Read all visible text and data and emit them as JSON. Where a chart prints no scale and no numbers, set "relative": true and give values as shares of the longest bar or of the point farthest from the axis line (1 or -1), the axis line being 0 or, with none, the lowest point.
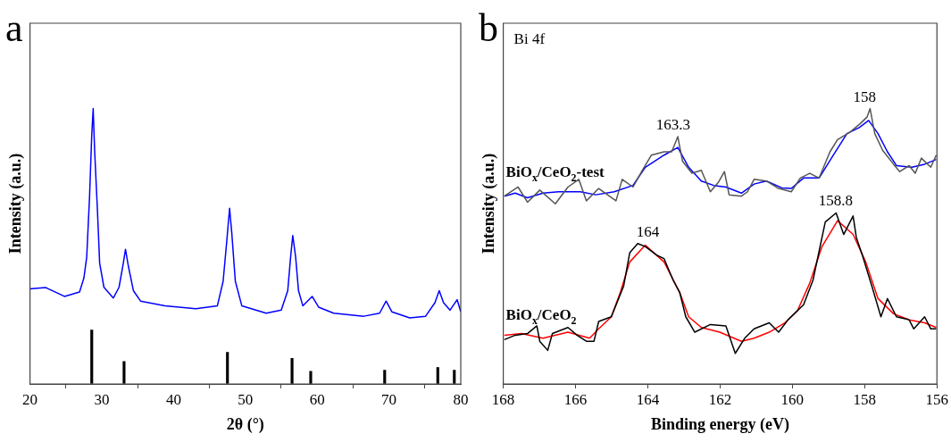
{
  "chart_data": [
    {
      "type": "line",
      "title": "a",
      "xlabel": "2θ (°)",
      "ylabel": "Intensity (a.u.)",
      "relative": true,
      "xlim": [
        20,
        80
      ],
      "xticks": [
        20,
        30,
        40,
        50,
        60,
        70,
        80
      ],
      "legend": false,
      "grid": false,
      "marker": "none",
      "series": [
        {
          "type": "line",
          "color": "#0000ff",
          "x": [
            20,
            22.2,
            24.8,
            26.9,
            27.5,
            27.9,
            28.3,
            28.6,
            28.8,
            29.0,
            29.4,
            29.7,
            30.3,
            31.6,
            32.4,
            33.0,
            33.3,
            33.7,
            34.4,
            35.4,
            38.8,
            43.1,
            46.1,
            46.9,
            47.4,
            47.8,
            48.1,
            48.6,
            49.5,
            52.9,
            55.0,
            55.9,
            56.3,
            56.6,
            57.0,
            57.4,
            58.0,
            59.3,
            60.2,
            62.3,
            66.5,
            68.7,
            69.6,
            70.4,
            72.9,
            75.1,
            76.4,
            77.0,
            77.6,
            78.5,
            79.5,
            80
          ],
          "values": [
            0.345,
            0.35,
            0.318,
            0.334,
            0.384,
            0.461,
            0.683,
            0.904,
            1.0,
            0.849,
            0.627,
            0.439,
            0.351,
            0.312,
            0.351,
            0.439,
            0.489,
            0.428,
            0.339,
            0.301,
            0.284,
            0.273,
            0.284,
            0.373,
            0.517,
            0.638,
            0.55,
            0.373,
            0.284,
            0.257,
            0.268,
            0.339,
            0.461,
            0.539,
            0.461,
            0.339,
            0.284,
            0.318,
            0.279,
            0.257,
            0.246,
            0.257,
            0.301,
            0.262,
            0.24,
            0.246,
            0.295,
            0.339,
            0.295,
            0.268,
            0.306,
            0.262
          ]
        },
        {
          "type": "bar",
          "color": "#000000",
          "x": [
            28.6,
            33.1,
            47.5,
            56.5,
            59.1,
            69.4,
            76.8,
            79.1
          ],
          "values": [
            0.196,
            0.082,
            0.115,
            0.093,
            0.046,
            0.05,
            0.06,
            0.05
          ]
        }
      ]
    },
    {
      "type": "line",
      "title": "b",
      "xlabel": "Binding energy (eV)",
      "ylabel": "Intensity (a.u.)",
      "relative": true,
      "xlim": [
        168,
        156
      ],
      "xticks": [
        168,
        166,
        164,
        162,
        160,
        158,
        156
      ],
      "legend": false,
      "grid": false,
      "marker": "none",
      "annotations": [
        "Bi 4f",
        {
          "text": "163.3",
          "x": 163.3,
          "y": 0.898
        },
        {
          "text": "158",
          "x": 158,
          "y": 1
        },
        {
          "text": "164",
          "x": 164,
          "y": 0.51
        },
        {
          "text": "158.8",
          "x": 158.8,
          "y": 0.621
        }
      ],
      "series": [
        {
          "type": "line",
          "name": "BiO$_{x}$/CeO$_{2}$-test",
          "color": "#555555",
          "x": [
            167.97,
            167.59,
            167.33,
            166.99,
            166.56,
            166.21,
            165.91,
            165.7,
            165.36,
            164.88,
            164.71,
            164.41,
            164.15,
            163.9,
            163.55,
            163.34,
            163.17,
            163.04,
            162.78,
            162.52,
            162.27,
            162.05,
            161.88,
            161.75,
            161.41,
            161.24,
            161.06,
            160.72,
            160.38,
            160.03,
            159.78,
            159.52,
            159.26,
            158.96,
            158.75,
            158.4,
            158.1,
            157.93,
            157.85,
            157.72,
            157.5,
            157.2,
            157.03,
            156.77,
            156.6,
            156.43,
            156.17,
            156.02
          ],
          "values": [
            0.682,
            0.715,
            0.66,
            0.704,
            0.654,
            0.715,
            0.743,
            0.665,
            0.71,
            0.665,
            0.743,
            0.715,
            0.776,
            0.831,
            0.843,
            0.843,
            0.898,
            0.809,
            0.765,
            0.776,
            0.698,
            0.732,
            0.771,
            0.687,
            0.682,
            0.698,
            0.743,
            0.737,
            0.71,
            0.698,
            0.748,
            0.765,
            0.748,
            0.843,
            0.887,
            0.915,
            0.948,
            0.97,
            1,
            0.909,
            0.848,
            0.798,
            0.771,
            0.793,
            0.765,
            0.82,
            0.787,
            0.831
          ]
        },
        {
          "type": "line",
          "color": "#0000ff",
          "x": [
            167.97,
            167.67,
            167.33,
            166.9,
            166.47,
            165.87,
            165.44,
            164.93,
            164.41,
            164.07,
            163.55,
            163.17,
            162.87,
            162.52,
            162.18,
            161.84,
            161.41,
            161.06,
            160.72,
            160.29,
            160.03,
            159.69,
            159.26,
            158.92,
            158.49,
            158.15,
            157.89,
            157.63,
            157.37,
            157.12,
            156.69,
            156.34,
            156.02
          ],
          "values": [
            0.682,
            0.693,
            0.676,
            0.693,
            0.698,
            0.698,
            0.687,
            0.698,
            0.721,
            0.787,
            0.831,
            0.859,
            0.787,
            0.737,
            0.721,
            0.715,
            0.693,
            0.726,
            0.737,
            0.712,
            0.71,
            0.748,
            0.748,
            0.82,
            0.909,
            0.931,
            0.957,
            0.909,
            0.843,
            0.793,
            0.787,
            0.798,
            0.815
          ]
        },
        {
          "type": "line",
          "name": "BiO$_{x}$/CeO$_{2}$",
          "color": "#000000",
          "x": [
            167.97,
            167.67,
            167.33,
            167.07,
            166.99,
            166.77,
            166.64,
            166.21,
            165.96,
            165.7,
            165.49,
            165.36,
            165.01,
            164.67,
            164.5,
            164.28,
            164.07,
            163.73,
            163.55,
            163.3,
            163.12,
            162.95,
            162.7,
            162.27,
            161.84,
            161.58,
            161.32,
            161.06,
            160.64,
            160.38,
            160.12,
            159.69,
            159.43,
            159.09,
            158.79,
            158.58,
            158.32,
            158.23,
            158.06,
            157.8,
            157.55,
            157.37,
            157.12,
            156.77,
            156.64,
            156.34,
            156.17,
            156.02
          ],
          "values": [
            0.161,
            0.177,
            0.183,
            0.211,
            0.155,
            0.122,
            0.183,
            0.205,
            0.177,
            0.155,
            0.155,
            0.227,
            0.244,
            0.355,
            0.477,
            0.51,
            0.499,
            0.466,
            0.455,
            0.377,
            0.333,
            0.244,
            0.188,
            0.216,
            0.211,
            0.111,
            0.166,
            0.2,
            0.222,
            0.188,
            0.233,
            0.288,
            0.377,
            0.588,
            0.621,
            0.543,
            0.61,
            0.532,
            0.466,
            0.355,
            0.244,
            0.31,
            0.244,
            0.233,
            0.2,
            0.244,
            0.2,
            0.2
          ]
        },
        {
          "type": "line",
          "color": "#ff0000",
          "x": [
            167.97,
            167.5,
            166.9,
            166.21,
            165.61,
            165.36,
            165.01,
            164.76,
            164.5,
            164.07,
            163.55,
            163.12,
            162.87,
            162.52,
            162.01,
            161.41,
            161.06,
            160.64,
            160.21,
            159.86,
            159.52,
            159.18,
            158.75,
            158.32,
            157.97,
            157.63,
            157.2,
            156.77,
            156.34,
            156.02
          ],
          "values": [
            0.177,
            0.183,
            0.166,
            0.188,
            0.166,
            0.2,
            0.244,
            0.333,
            0.443,
            0.504,
            0.443,
            0.333,
            0.244,
            0.205,
            0.188,
            0.155,
            0.166,
            0.188,
            0.222,
            0.266,
            0.366,
            0.499,
            0.593,
            0.543,
            0.443,
            0.31,
            0.255,
            0.233,
            0.222,
            0.205
          ]
        }
      ]
    }
  ]
}
